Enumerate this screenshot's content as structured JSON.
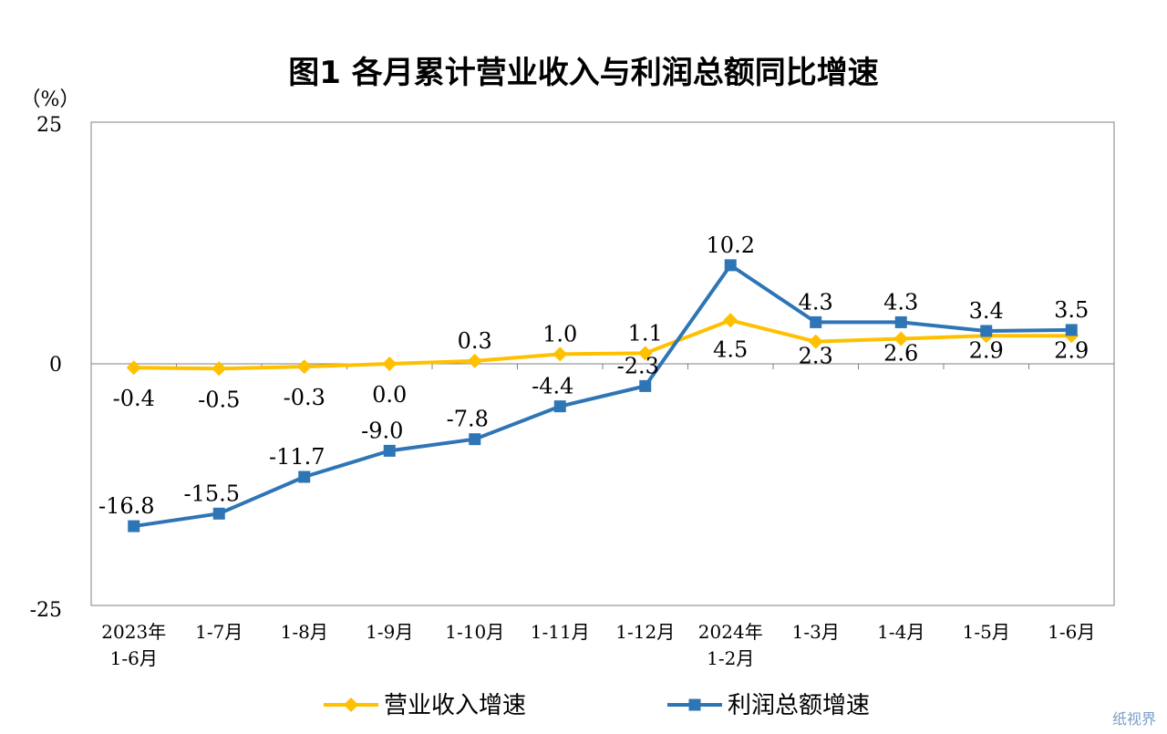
{
  "chart_data": {
    "type": "line",
    "title": "图1  各月累计营业收入与利润总额同比增速",
    "unit_label": "（%）",
    "ylim": [
      -25,
      25
    ],
    "yticks": [
      "25",
      "0",
      "-25"
    ],
    "categories": [
      [
        "2023年",
        "1-6月"
      ],
      [
        "1-7月"
      ],
      [
        "1-8月"
      ],
      [
        "1-9月"
      ],
      [
        "1-10月"
      ],
      [
        "1-11月"
      ],
      [
        "1-12月"
      ],
      [
        "2024年",
        "1-2月"
      ],
      [
        "1-3月"
      ],
      [
        "1-4月"
      ],
      [
        "1-5月"
      ],
      [
        "1-6月"
      ]
    ],
    "series": [
      {
        "name": "营业收入增速",
        "color": "#FFC000",
        "marker": "diamond",
        "values": [
          -0.4,
          -0.5,
          -0.3,
          0.0,
          0.3,
          1.0,
          1.1,
          4.5,
          2.3,
          2.6,
          2.9,
          2.9
        ],
        "labels": [
          "-0.4",
          "-0.5",
          "-0.3",
          "0.0",
          "0.3",
          "1.0",
          "1.1",
          "4.5",
          "2.3",
          "2.6",
          "2.9",
          "2.9"
        ]
      },
      {
        "name": "利润总额增速",
        "color": "#2E75B6",
        "marker": "square",
        "values": [
          -16.8,
          -15.5,
          -11.7,
          -9.0,
          -7.8,
          -4.4,
          -2.3,
          10.2,
          4.3,
          4.3,
          3.4,
          3.5
        ],
        "labels": [
          "-16.8",
          "-15.5",
          "-11.7",
          "-9.0",
          "-7.8",
          "-4.4",
          "-2.3",
          "10.2",
          "4.3",
          "4.3",
          "3.4",
          "3.5"
        ]
      }
    ],
    "grid": false,
    "legend_position": "bottom"
  },
  "watermark": "纸视界"
}
